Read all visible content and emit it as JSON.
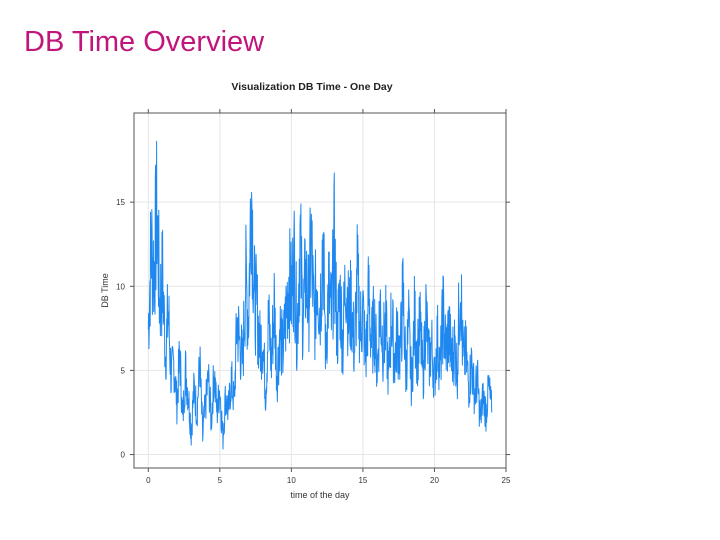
{
  "slide": {
    "title": "DB Time Overview"
  },
  "chart_data": {
    "type": "line",
    "title": "Visualization DB Time - One Day",
    "xlabel": "time of the day",
    "ylabel": "DB Time",
    "xlim": [
      -1,
      25
    ],
    "ylim": [
      -0.8,
      20.3
    ],
    "xticks": [
      0,
      5,
      10,
      15,
      20,
      25
    ],
    "yticks": [
      0,
      5,
      10,
      15
    ],
    "grid": true,
    "legend": "none",
    "color": "#1e88f0",
    "series": [
      {
        "x": [
          0.0,
          0.2,
          0.4,
          0.6,
          0.8,
          1.0,
          1.2,
          1.4,
          1.6,
          1.8,
          2.0,
          2.2,
          2.4,
          2.6,
          2.8,
          3.0,
          3.2,
          3.4,
          3.6,
          3.8,
          4.0,
          4.2,
          4.4,
          4.6,
          4.8,
          5.0,
          5.2,
          5.4,
          5.6,
          5.8,
          6.0,
          6.2,
          6.4,
          6.6,
          6.8,
          7.0,
          7.2,
          7.4,
          7.6,
          7.8,
          8.0,
          8.2,
          8.4,
          8.6,
          8.8,
          9.0,
          9.2,
          9.4,
          9.6,
          9.8,
          10.0,
          10.2,
          10.4,
          10.6,
          10.8,
          11.0,
          11.2,
          11.4,
          11.6,
          11.8,
          12.0,
          12.2,
          12.4,
          12.6,
          12.8,
          13.0,
          13.2,
          13.4,
          13.6,
          13.8,
          14.0,
          14.2,
          14.4,
          14.6,
          14.8,
          15.0,
          15.2,
          15.4,
          15.6,
          15.8,
          16.0,
          16.2,
          16.4,
          16.6,
          16.8,
          17.0,
          17.2,
          17.4,
          17.6,
          17.8,
          18.0,
          18.2,
          18.4,
          18.6,
          18.8,
          19.0,
          19.2,
          19.4,
          19.6,
          19.8,
          20.0,
          20.2,
          20.4,
          20.6,
          20.8,
          21.0,
          21.2,
          21.4,
          21.6,
          21.8,
          22.0,
          22.2,
          22.4,
          22.6,
          22.8,
          23.0,
          23.2,
          23.4,
          23.6,
          23.8,
          24.0
        ],
        "y": [
          7.5,
          12.5,
          11.0,
          14.5,
          9.0,
          10.5,
          6.0,
          8.5,
          4.5,
          5.5,
          3.0,
          6.0,
          2.0,
          5.0,
          3.5,
          1.5,
          4.0,
          2.5,
          5.5,
          1.0,
          3.0,
          4.5,
          2.0,
          5.0,
          2.5,
          4.0,
          1.0,
          3.5,
          2.5,
          4.5,
          3.0,
          8.0,
          6.5,
          5.5,
          10.5,
          8.0,
          16.5,
          9.5,
          8.5,
          6.5,
          7.0,
          3.5,
          8.0,
          5.5,
          9.0,
          4.5,
          7.5,
          6.0,
          8.0,
          10.5,
          9.5,
          11.5,
          7.0,
          13.0,
          8.0,
          10.5,
          9.0,
          12.5,
          7.5,
          11.0,
          8.5,
          13.0,
          6.0,
          10.0,
          8.0,
          12.5,
          7.0,
          9.5,
          6.5,
          11.0,
          8.0,
          9.0,
          6.0,
          10.5,
          7.5,
          8.5,
          5.5,
          9.5,
          6.5,
          8.0,
          5.0,
          9.0,
          6.5,
          7.5,
          4.5,
          8.5,
          5.5,
          7.0,
          6.0,
          9.5,
          5.0,
          7.5,
          4.0,
          8.0,
          6.0,
          7.5,
          4.5,
          8.5,
          5.5,
          6.5,
          4.5,
          7.0,
          5.0,
          8.5,
          6.0,
          7.5,
          5.5,
          6.5,
          5.0,
          11.0,
          5.5,
          6.0,
          4.0,
          5.5,
          3.5,
          4.5,
          2.0,
          3.5,
          2.5,
          4.0,
          2.5
        ]
      }
    ]
  }
}
